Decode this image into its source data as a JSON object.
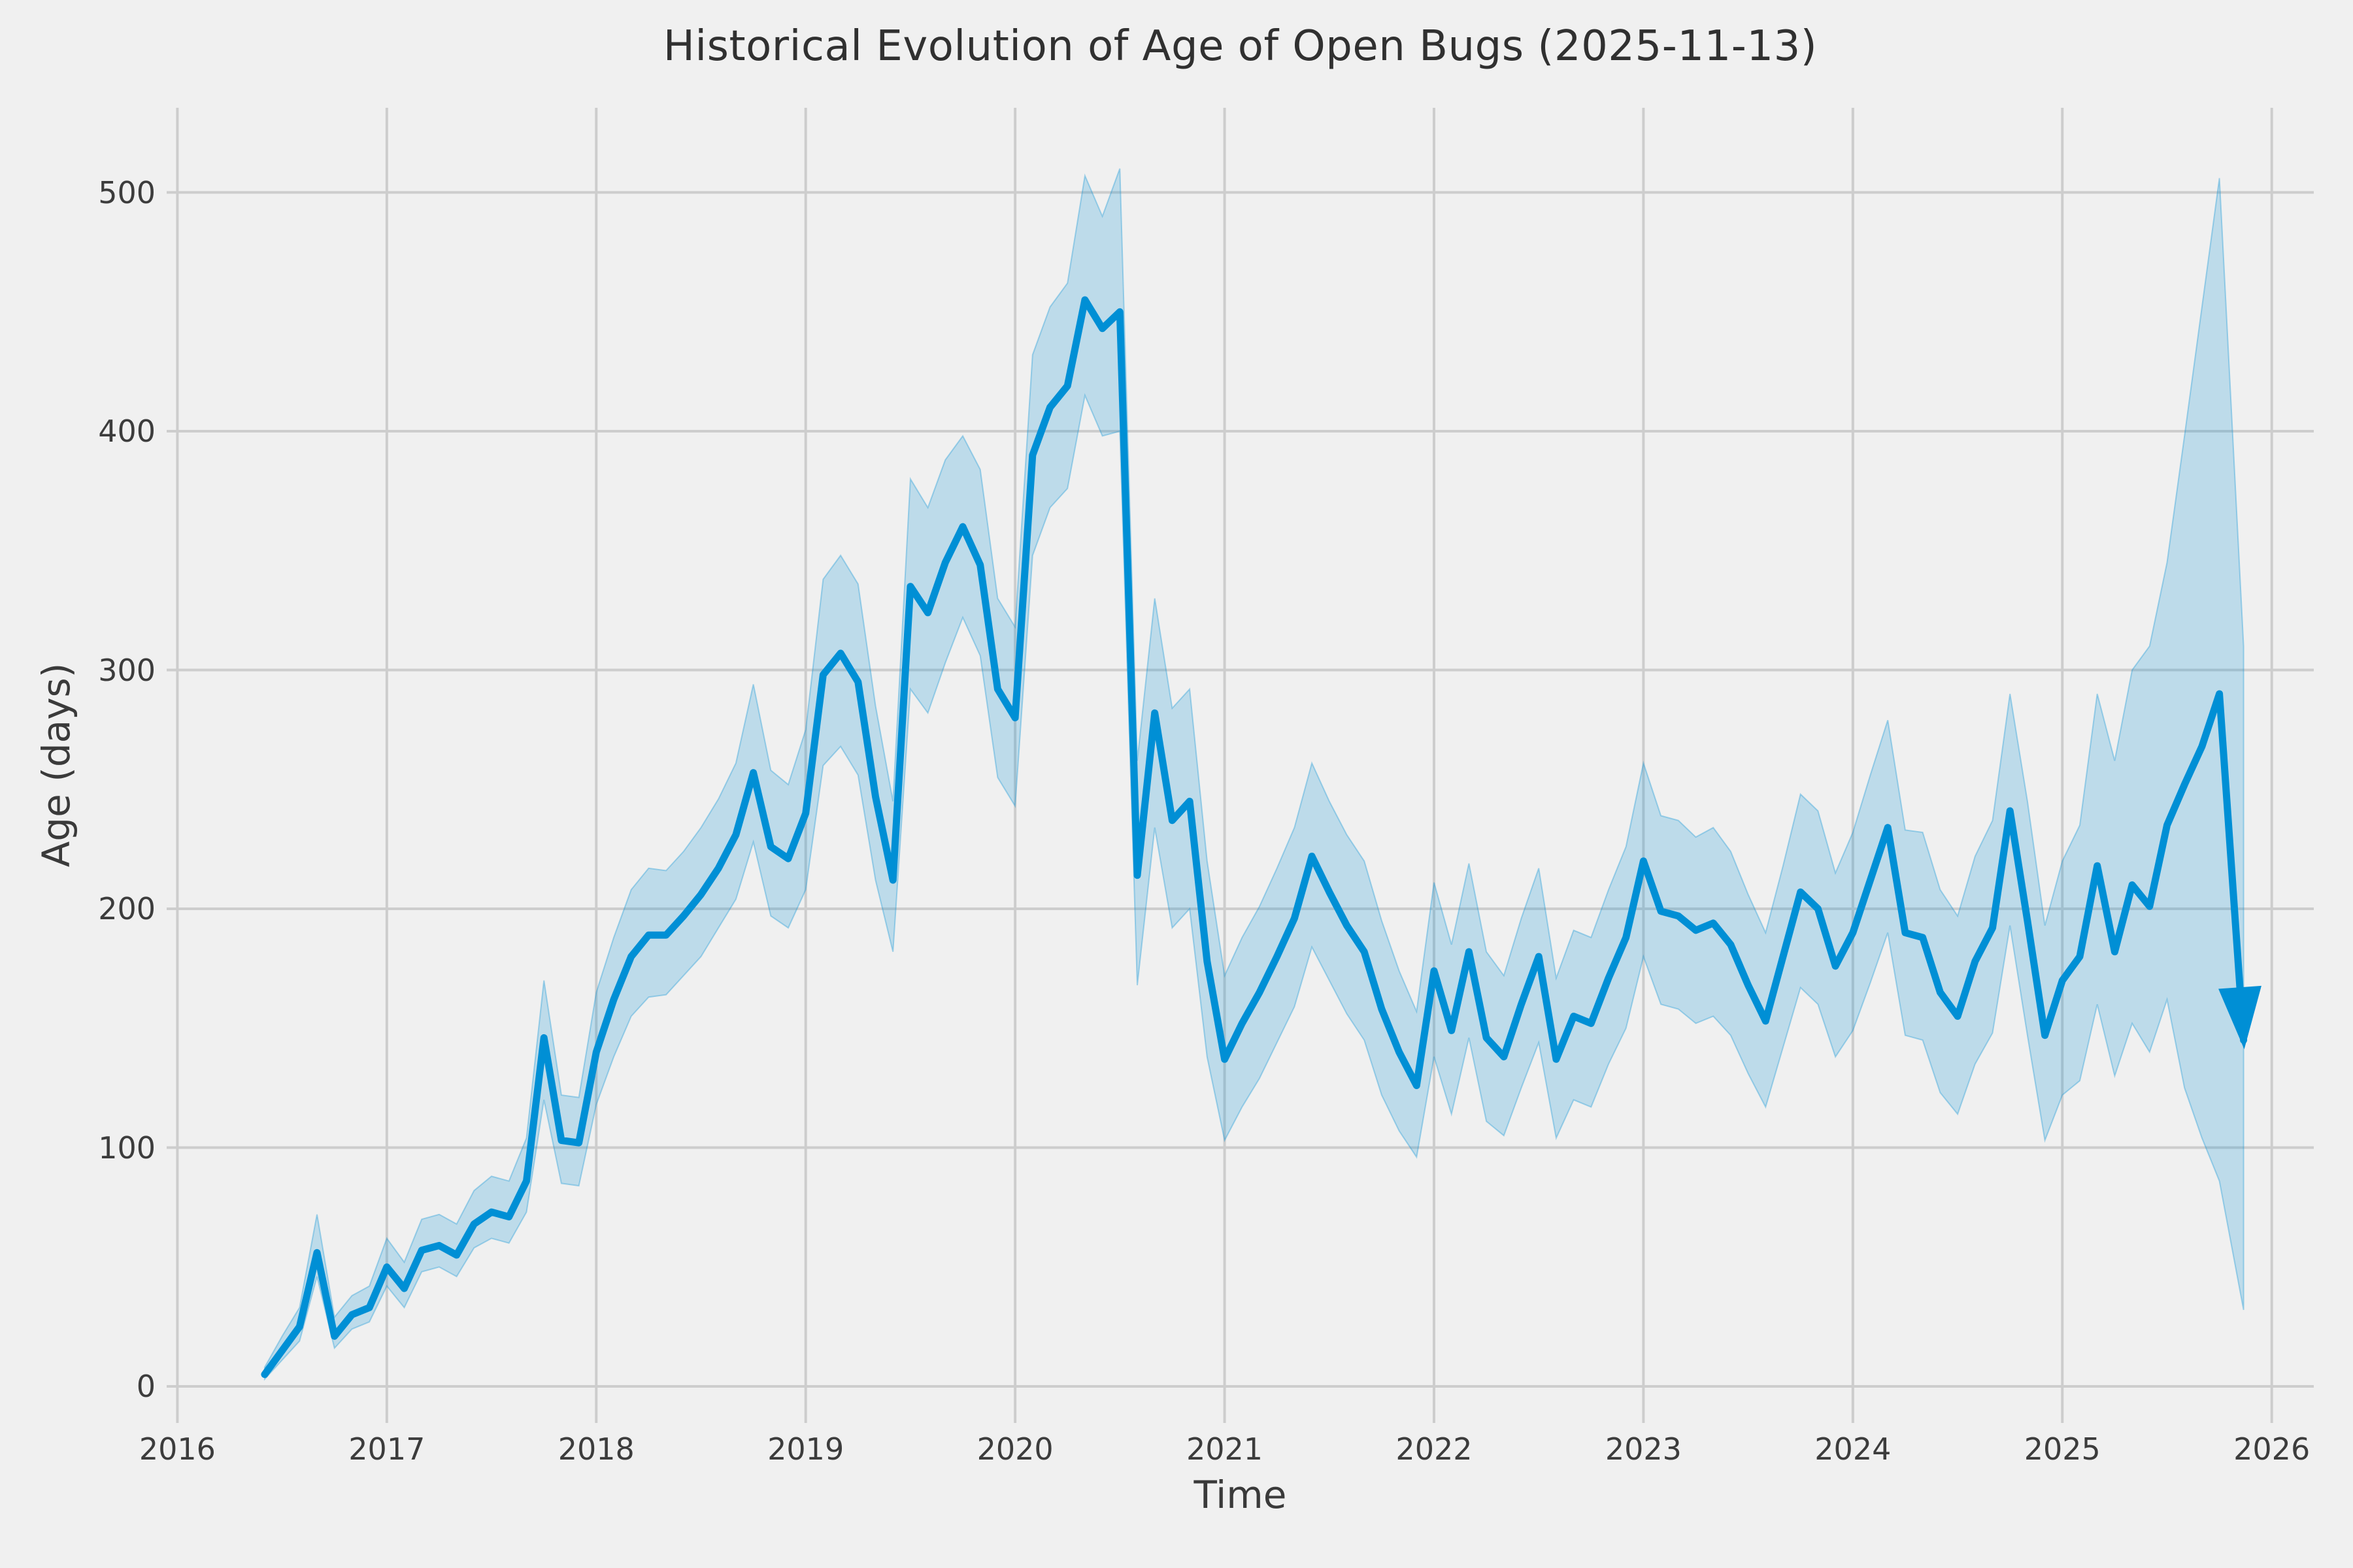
{
  "title": "Historical Evolution of Age of Open Bugs (2025-11-13)",
  "x_axis": {
    "label": "Time",
    "ticks": [
      "2016",
      "2017",
      "2018",
      "2019",
      "2020",
      "2021",
      "2022",
      "2023",
      "2024",
      "2025",
      "2026"
    ]
  },
  "y_axis": {
    "label": "Age (days)",
    "ticks": [
      "0",
      "100",
      "200",
      "300",
      "400",
      "500"
    ]
  },
  "colors": {
    "background": "#f0f0f0",
    "grid": "#cdcdcd",
    "line": "#008fd5",
    "band_fill": "rgba(0,143,213,0.21)",
    "band_edge": "rgba(0,143,213,0.32)",
    "text": "#3a3a3a"
  },
  "chart_data": {
    "type": "line",
    "title": "Historical Evolution of Age of Open Bugs (2025-11-13)",
    "xlabel": "Time",
    "ylabel": "Age (days)",
    "x_tick_years": [
      2016,
      2017,
      2018,
      2019,
      2020,
      2021,
      2022,
      2023,
      2024,
      2025,
      2026
    ],
    "y_ticks": [
      0,
      100,
      200,
      300,
      400,
      500
    ],
    "xlim": [
      2015.95,
      2026.2
    ],
    "ylim": [
      -15,
      535
    ],
    "grid": true,
    "legend": false,
    "end_marker": "arrow-down",
    "band_meaning": "shaded uncertainty band (lower/upper bounds) around mean open-bug age",
    "series": [
      {
        "name": "open-bug-age-days",
        "point_format": [
          "date",
          "value",
          "lower",
          "upper"
        ],
        "points": [
          [
            "2016-06",
            5,
            3,
            8
          ],
          [
            "2016-07",
            15,
            11,
            21
          ],
          [
            "2016-08",
            25,
            19,
            33
          ],
          [
            "2016-09",
            56,
            46,
            72
          ],
          [
            "2016-10",
            21,
            16,
            29
          ],
          [
            "2016-11",
            30,
            24,
            38
          ],
          [
            "2016-12",
            33,
            27,
            42
          ],
          [
            "2017-01",
            50,
            42,
            62
          ],
          [
            "2017-02",
            41,
            33,
            52
          ],
          [
            "2017-03",
            57,
            48,
            70
          ],
          [
            "2017-04",
            59,
            50,
            72
          ],
          [
            "2017-05",
            55,
            46,
            68
          ],
          [
            "2017-06",
            68,
            58,
            82
          ],
          [
            "2017-07",
            73,
            62,
            88
          ],
          [
            "2017-08",
            71,
            60,
            86
          ],
          [
            "2017-09",
            86,
            73,
            104
          ],
          [
            "2017-10",
            146,
            120,
            170
          ],
          [
            "2017-11",
            103,
            85,
            122
          ],
          [
            "2017-12",
            102,
            84,
            121
          ],
          [
            "2018-01",
            140,
            118,
            165
          ],
          [
            "2018-02",
            162,
            138,
            188
          ],
          [
            "2018-03",
            180,
            155,
            208
          ],
          [
            "2018-04",
            189,
            163,
            217
          ],
          [
            "2018-05",
            189,
            164,
            216
          ],
          [
            "2018-06",
            197,
            172,
            224
          ],
          [
            "2018-07",
            206,
            180,
            234
          ],
          [
            "2018-08",
            217,
            192,
            246
          ],
          [
            "2018-09",
            231,
            204,
            261
          ],
          [
            "2018-10",
            257,
            228,
            294
          ],
          [
            "2018-11",
            226,
            197,
            258
          ],
          [
            "2018-12",
            221,
            192,
            252
          ],
          [
            "2019-01",
            240,
            208,
            275
          ],
          [
            "2019-02",
            298,
            260,
            338
          ],
          [
            "2019-03",
            307,
            268,
            348
          ],
          [
            "2019-04",
            295,
            256,
            336
          ],
          [
            "2019-05",
            247,
            212,
            285
          ],
          [
            "2019-06",
            212,
            182,
            245
          ],
          [
            "2019-07",
            335,
            292,
            380
          ],
          [
            "2019-08",
            324,
            282,
            368
          ],
          [
            "2019-09",
            345,
            303,
            388
          ],
          [
            "2019-10",
            360,
            322,
            398
          ],
          [
            "2019-11",
            344,
            306,
            384
          ],
          [
            "2019-12",
            292,
            255,
            330
          ],
          [
            "2020-01",
            280,
            243,
            318
          ],
          [
            "2020-02",
            390,
            348,
            432
          ],
          [
            "2020-03",
            410,
            368,
            452
          ],
          [
            "2020-04",
            419,
            376,
            462
          ],
          [
            "2020-05",
            455,
            415,
            507
          ],
          [
            "2020-06",
            443,
            398,
            490
          ],
          [
            "2020-07",
            450,
            400,
            510
          ],
          [
            "2020-08",
            214,
            168,
            262
          ],
          [
            "2020-09",
            282,
            234,
            330
          ],
          [
            "2020-10",
            237,
            192,
            284
          ],
          [
            "2020-11",
            245,
            200,
            292
          ],
          [
            "2020-12",
            178,
            138,
            220
          ],
          [
            "2021-01",
            137,
            103,
            172
          ],
          [
            "2021-02",
            152,
            117,
            188
          ],
          [
            "2021-03",
            165,
            129,
            201
          ],
          [
            "2021-04",
            180,
            144,
            217
          ],
          [
            "2021-05",
            196,
            159,
            234
          ],
          [
            "2021-06",
            222,
            184,
            261
          ],
          [
            "2021-07",
            207,
            170,
            245
          ],
          [
            "2021-08",
            193,
            156,
            231
          ],
          [
            "2021-09",
            182,
            145,
            220
          ],
          [
            "2021-10",
            158,
            122,
            195
          ],
          [
            "2021-11",
            140,
            107,
            174
          ],
          [
            "2021-12",
            126,
            96,
            157
          ],
          [
            "2022-01",
            174,
            138,
            211
          ],
          [
            "2022-02",
            149,
            114,
            185
          ],
          [
            "2022-03",
            182,
            146,
            219
          ],
          [
            "2022-04",
            146,
            111,
            182
          ],
          [
            "2022-05",
            138,
            105,
            172
          ],
          [
            "2022-06",
            160,
            125,
            196
          ],
          [
            "2022-07",
            180,
            144,
            217
          ],
          [
            "2022-08",
            137,
            104,
            171
          ],
          [
            "2022-09",
            155,
            120,
            191
          ],
          [
            "2022-10",
            152,
            117,
            188
          ],
          [
            "2022-11",
            171,
            135,
            208
          ],
          [
            "2022-12",
            188,
            150,
            226
          ],
          [
            "2023-01",
            220,
            180,
            261
          ],
          [
            "2023-02",
            199,
            160,
            239
          ],
          [
            "2023-03",
            197,
            158,
            237
          ],
          [
            "2023-04",
            191,
            152,
            230
          ],
          [
            "2023-05",
            194,
            155,
            234
          ],
          [
            "2023-06",
            185,
            147,
            224
          ],
          [
            "2023-07",
            168,
            131,
            206
          ],
          [
            "2023-08",
            153,
            117,
            190
          ],
          [
            "2023-09",
            180,
            142,
            218
          ],
          [
            "2023-10",
            207,
            167,
            248
          ],
          [
            "2023-11",
            200,
            160,
            241
          ],
          [
            "2023-12",
            176,
            138,
            215
          ],
          [
            "2024-01",
            190,
            149,
            232
          ],
          [
            "2024-02",
            212,
            169,
            256
          ],
          [
            "2024-03",
            234,
            190,
            279
          ],
          [
            "2024-04",
            190,
            147,
            233
          ],
          [
            "2024-05",
            188,
            145,
            232
          ],
          [
            "2024-06",
            165,
            123,
            208
          ],
          [
            "2024-07",
            155,
            114,
            197
          ],
          [
            "2024-08",
            178,
            135,
            222
          ],
          [
            "2024-09",
            192,
            148,
            237
          ],
          [
            "2024-10",
            241,
            193,
            290
          ],
          [
            "2024-11",
            195,
            147,
            245
          ],
          [
            "2024-12",
            147,
            103,
            193
          ],
          [
            "2025-01",
            170,
            122,
            220
          ],
          [
            "2025-02",
            180,
            128,
            235
          ],
          [
            "2025-03",
            218,
            160,
            290
          ],
          [
            "2025-04",
            182,
            130,
            262
          ],
          [
            "2025-05",
            210,
            152,
            300
          ],
          [
            "2025-06",
            201,
            140,
            310
          ],
          [
            "2025-07",
            235,
            162,
            345
          ],
          [
            "2025-08",
            252,
            125,
            398
          ],
          [
            "2025-09",
            268,
            104,
            452
          ],
          [
            "2025-10",
            290,
            86,
            506
          ],
          [
            "2025-11-13",
            145,
            32,
            310
          ]
        ]
      }
    ]
  }
}
